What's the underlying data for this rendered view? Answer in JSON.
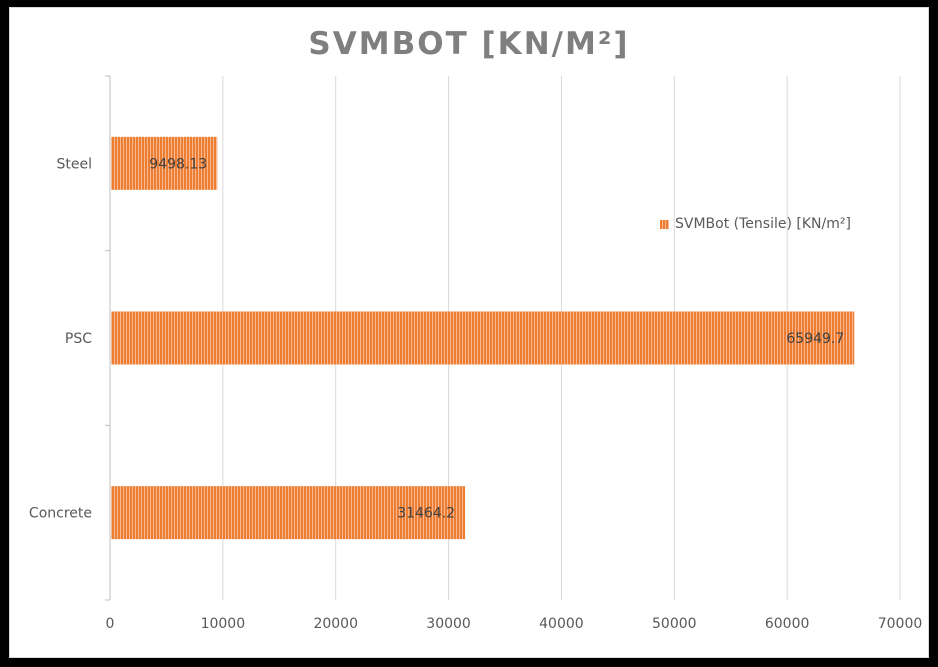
{
  "chart_data": {
    "type": "bar",
    "orientation": "horizontal",
    "title": "SVMBOT [KN/M²]",
    "categories": [
      "Steel",
      "PSC",
      "Concrete"
    ],
    "series": [
      {
        "name": "SVMBot (Tensile) [KN/m²]",
        "values": [
          9498.13,
          65949.7,
          31464.2
        ],
        "data_labels": [
          "9498.13",
          "65949.7",
          "31464.2"
        ],
        "color": "#ed7d31"
      }
    ],
    "x_ticks": [
      "0",
      "10000",
      "20000",
      "30000",
      "40000",
      "50000",
      "60000",
      "70000"
    ],
    "xlim": [
      0,
      70000
    ],
    "grid": "vertical",
    "legend_position": "right"
  }
}
